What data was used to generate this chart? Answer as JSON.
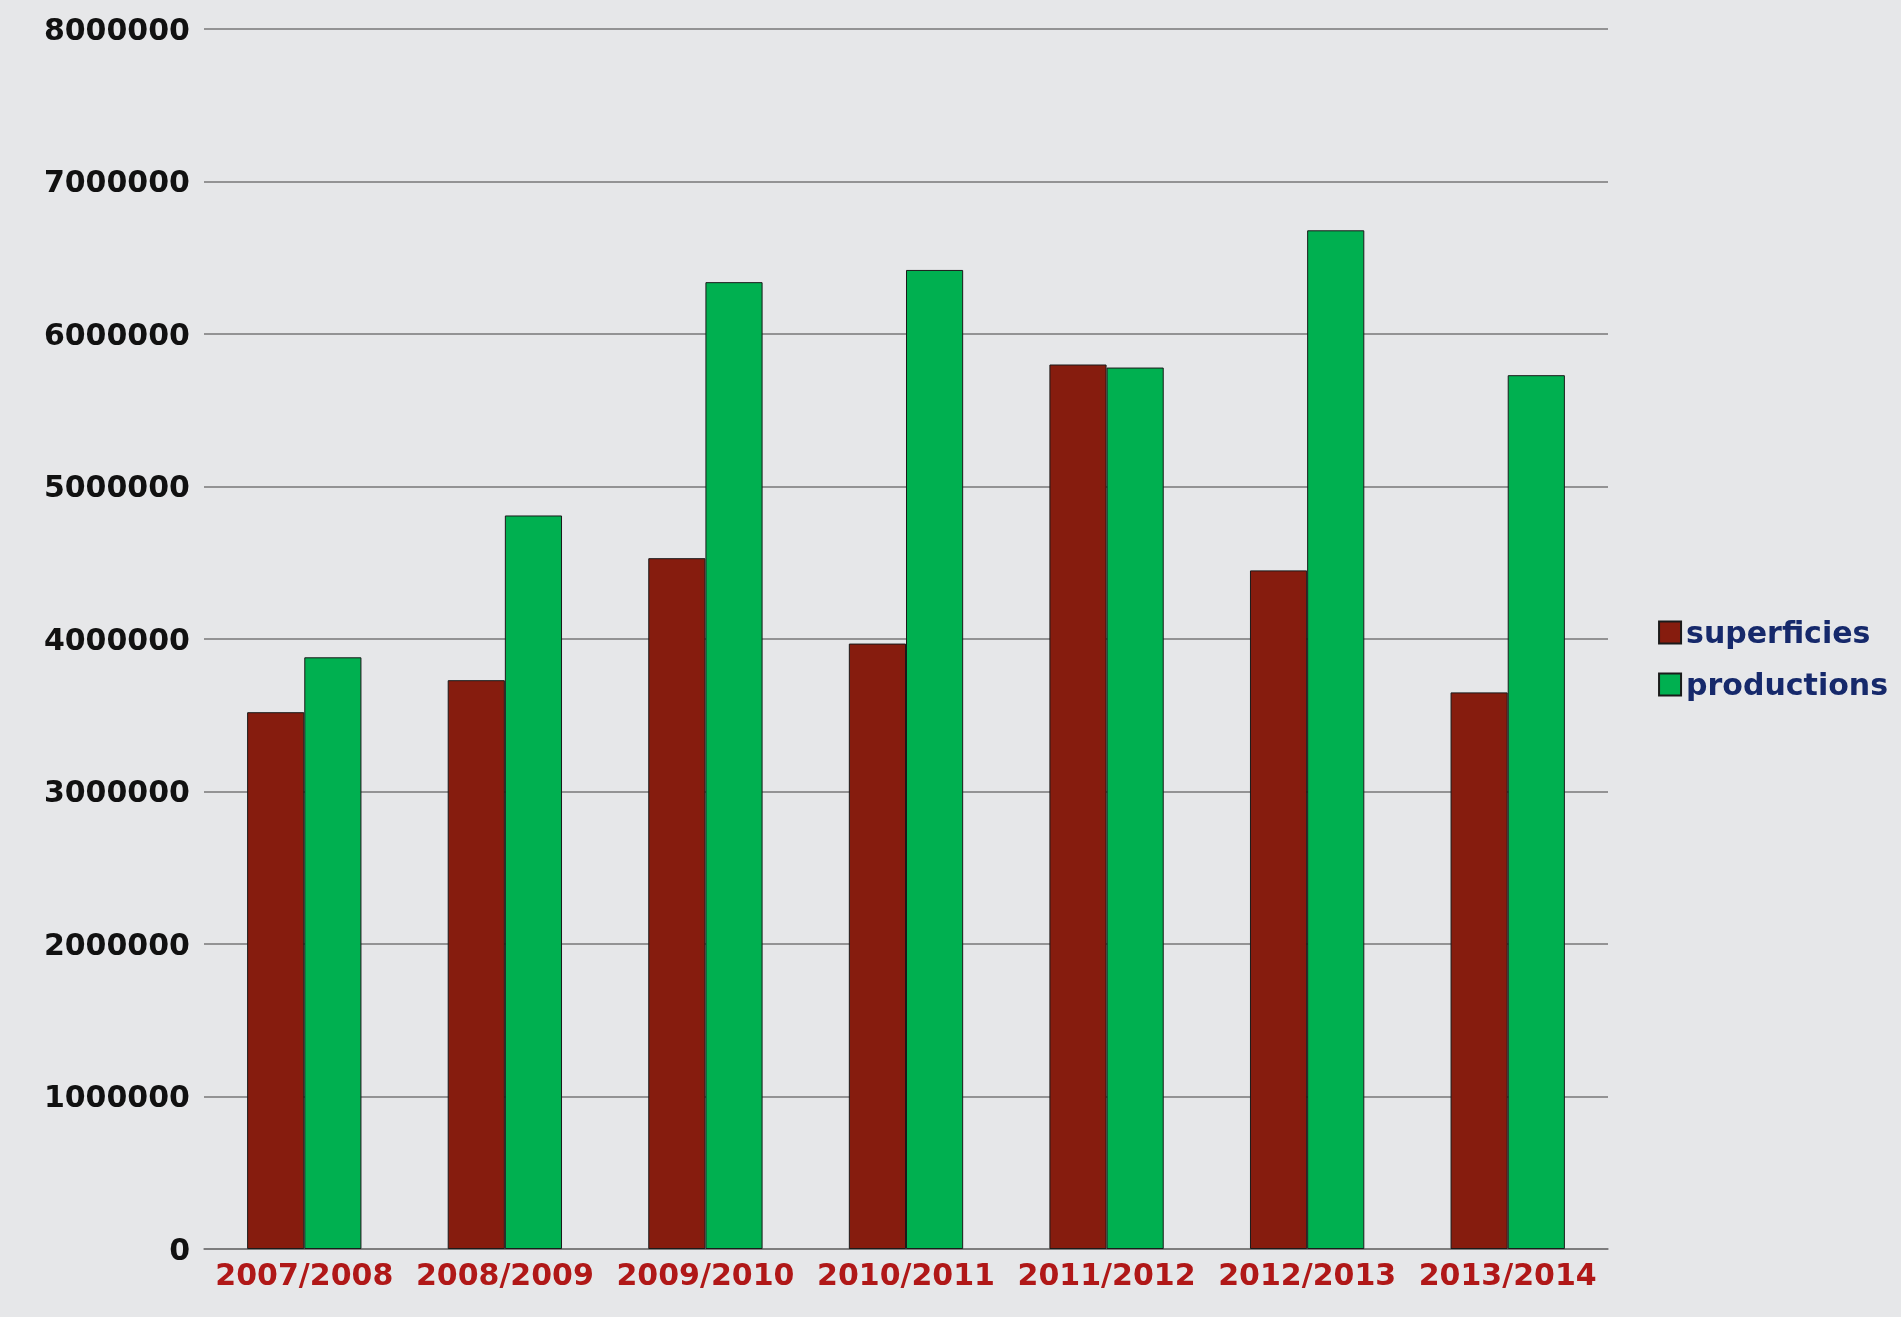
{
  "chart_data": {
    "type": "bar",
    "categories": [
      "2007/2008",
      "2008/2009",
      "2009/2010",
      "2010/2011",
      "2011/2012",
      "2012/2013",
      "2013/2014"
    ],
    "series": [
      {
        "name": "superficies",
        "color": "#861c0e",
        "values": [
          3520000,
          3730000,
          4530000,
          3970000,
          5800000,
          4450000,
          3650000
        ]
      },
      {
        "name": "productions",
        "color": "#00b050",
        "values": [
          3880000,
          4810000,
          6340000,
          6420000,
          5780000,
          6680000,
          5730000
        ]
      }
    ],
    "ylim": [
      0,
      8000000
    ],
    "yticks": [
      0,
      1000000,
      2000000,
      3000000,
      4000000,
      5000000,
      6000000,
      7000000,
      8000000
    ],
    "grid": "y",
    "legend": "right"
  }
}
